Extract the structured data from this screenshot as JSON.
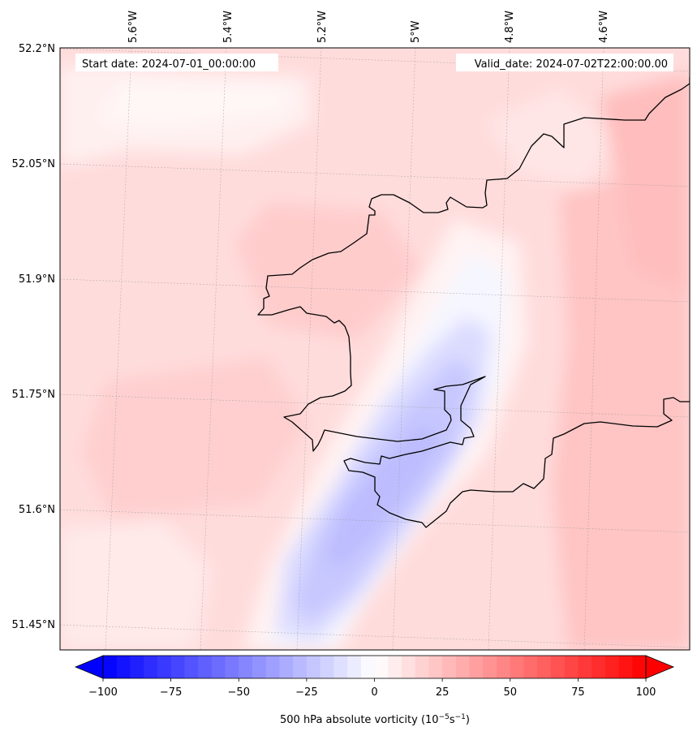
{
  "header": {
    "start_date": "Start date: 2024-07-01_00:00:00",
    "valid_date": "Valid_date: 2024-07-02T22:00:00.00"
  },
  "map": {
    "lon_labels": [
      "5.6°W",
      "5.4°W",
      "5.2°W",
      "5°W",
      "4.8°W",
      "4.6°W"
    ],
    "lat_labels": [
      "52.2°N",
      "52.05°N",
      "51.9°N",
      "51.75°N",
      "51.6°N",
      "51.45°N"
    ],
    "field": "500 hPa absolute vorticity",
    "colors": {
      "background": "#ffd9d9",
      "low": "#0000ff",
      "high": "#ff0000",
      "coast": "#000000"
    }
  },
  "colorbar": {
    "min": -100,
    "max": 100,
    "ticks": [
      "−100",
      "−75",
      "−50",
      "−25",
      "0",
      "25",
      "50",
      "75",
      "100"
    ],
    "label_main": "500 hPa absolute vorticity (10",
    "label_exp1": "−5",
    "label_mid": "s",
    "label_exp2": "−1",
    "label_end": ")"
  }
}
